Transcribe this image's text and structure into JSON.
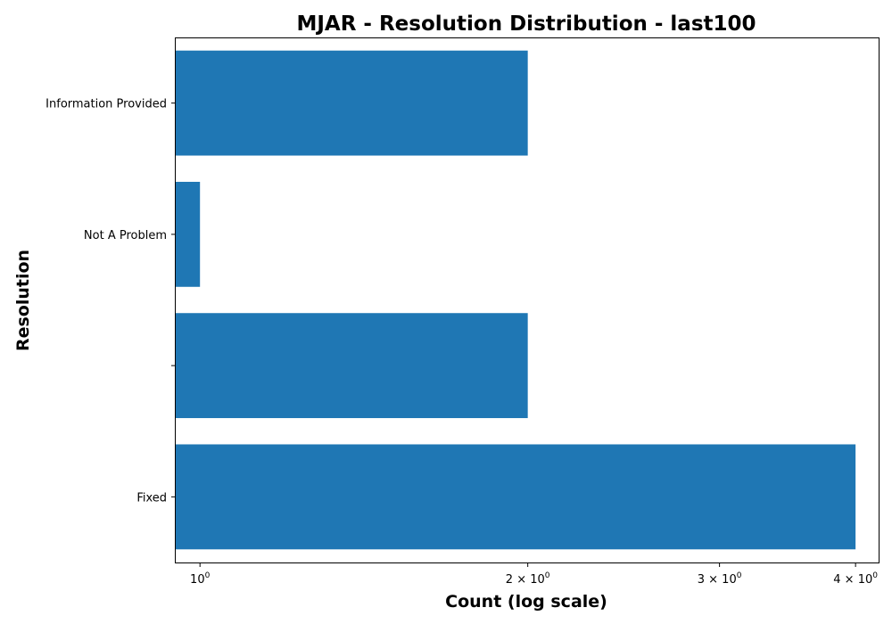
{
  "chart_data": {
    "type": "bar",
    "orientation": "horizontal",
    "title": "MJAR - Resolution Distribution - last100",
    "xlabel": "Count (log scale)",
    "ylabel": "Resolution",
    "x_scale": "log",
    "xlim": [
      0.95,
      4.2
    ],
    "categories": [
      "Fixed",
      "",
      "Not A Problem",
      "Information Provided"
    ],
    "values": [
      4,
      2,
      1,
      2
    ],
    "x_ticks": [
      {
        "value": 1,
        "base": "10",
        "exp": "0",
        "prefix": ""
      },
      {
        "value": 2,
        "base": "10",
        "exp": "0",
        "prefix": "2 × "
      },
      {
        "value": 3,
        "base": "10",
        "exp": "0",
        "prefix": "3 × "
      },
      {
        "value": 4,
        "base": "10",
        "exp": "0",
        "prefix": "4 × "
      }
    ],
    "bar_color": "#1f77b4",
    "grid": false,
    "legend": "none"
  }
}
